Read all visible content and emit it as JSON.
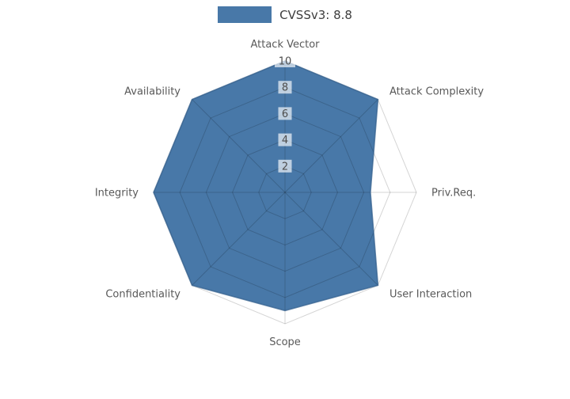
{
  "legend": {
    "label": "CVSSv3: 8.8",
    "swatch_color": "#4878a8"
  },
  "chart_data": {
    "type": "radar",
    "title": "",
    "categories": [
      "Attack Vector",
      "Attack Complexity",
      "Priv.Req.",
      "User Interaction",
      "Scope",
      "Confidentiality",
      "Integrity",
      "Availability"
    ],
    "series": [
      {
        "name": "CVSSv3: 8.8",
        "values": [
          10,
          10,
          6.5,
          10,
          9,
          10,
          10,
          10
        ],
        "fill_color": "#4878a8",
        "edge_color": "#35618f"
      }
    ],
    "radial_ticks": [
      2,
      4,
      6,
      8,
      10
    ],
    "rlim": [
      0,
      10
    ],
    "grid": true,
    "legend_position": "top-center",
    "colors": {
      "grid": "rgba(0,0,0,0.17)",
      "axis_label": "#595959",
      "tick_label": "#4d4d4d",
      "tick_box": "rgba(255,255,255,0.65)"
    }
  }
}
